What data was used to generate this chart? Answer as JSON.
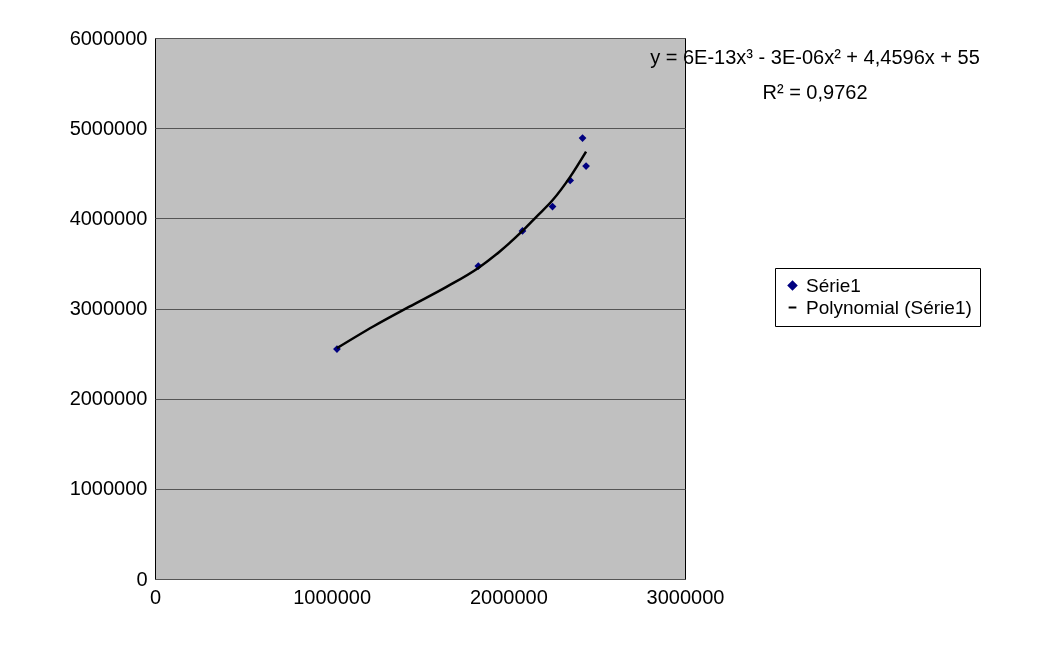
{
  "chart_data": {
    "type": "scatter",
    "xlim": [
      0,
      3000000
    ],
    "ylim": [
      0,
      6000000
    ],
    "xticks": [
      0,
      1000000,
      2000000,
      3000000
    ],
    "yticks": [
      0,
      1000000,
      2000000,
      3000000,
      4000000,
      5000000,
      6000000
    ],
    "grid": "y",
    "legend": "right",
    "annotations": [
      "y = 6E-13x³ - 3E-06x² + 4,4596x + 55",
      "R² = 0,9762"
    ],
    "series": [
      {
        "name": "Série1",
        "color": "#000080",
        "marker": "diamond",
        "x": [
          1030000,
          1830000,
          2080000,
          2250000,
          2350000,
          2420000,
          2440000
        ],
        "values": [
          2550000,
          3470000,
          3860000,
          4130000,
          4420000,
          4890000,
          4580000
        ]
      },
      {
        "name": "Polynomial (Série1)",
        "type": "line",
        "color": "#000000",
        "line_style": "solid",
        "marker": "none",
        "x": [
          1030000,
          1235000,
          1440000,
          1650000,
          1830000,
          1950000,
          2080000,
          2160000,
          2250000,
          2350000,
          2440000
        ],
        "values": [
          2560000,
          2800000,
          3020000,
          3240000,
          3450000,
          3630000,
          3860000,
          4020000,
          4200000,
          4460000,
          4740000
        ]
      }
    ]
  }
}
